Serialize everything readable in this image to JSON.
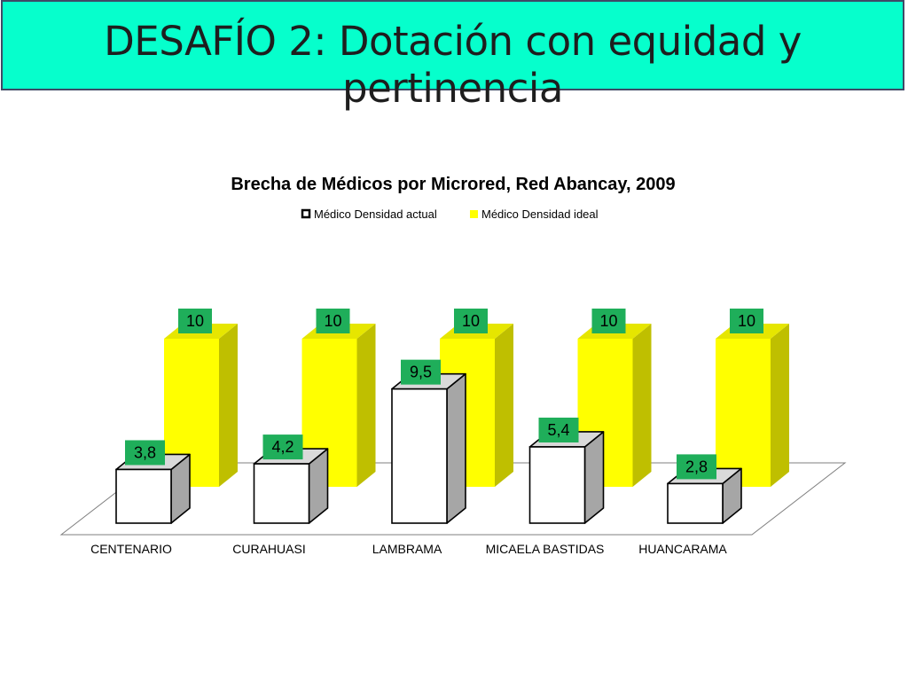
{
  "slide": {
    "title": "DESAFÍO 2: Dotación con equidad y pertinencia"
  },
  "colors": {
    "title_bg": "#06FFCC",
    "ideal_front": "#FFFF00",
    "ideal_side": "#BFBF00",
    "actual_front": "#FFFFFF",
    "actual_side": "#A6A6A6",
    "label_bg": "#1FAE5A"
  },
  "chart_data": {
    "type": "bar",
    "style": "3d-clustered-column",
    "title": "Brecha de Médicos por Microred, Red Abancay, 2009",
    "categories": [
      "CENTENARIO",
      "CURAHUASI",
      "LAMBRAMA",
      "MICAELA BASTIDAS",
      "HUANCARAMA"
    ],
    "series": [
      {
        "name": "Médico Densidad actual",
        "values": [
          3.8,
          4.2,
          9.5,
          5.4,
          2.8
        ],
        "labels": [
          "3,8",
          "4,2",
          "9,5",
          "5,4",
          "2,8"
        ]
      },
      {
        "name": "Médico Densidad ideal",
        "values": [
          10,
          10,
          10,
          10,
          10
        ],
        "labels": [
          "10",
          "10",
          "10",
          "10",
          "10"
        ]
      }
    ],
    "legend_position": "top",
    "grid": false
  }
}
